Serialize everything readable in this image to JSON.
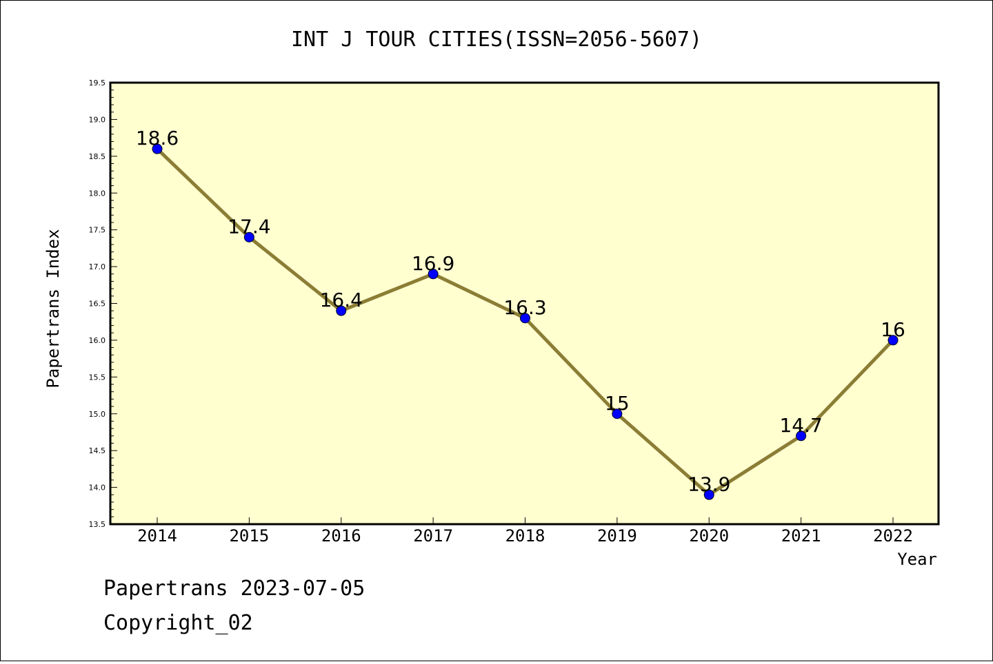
{
  "chart_data": {
    "type": "line",
    "title": "INT J TOUR CITIES(ISSN=2056-5607)",
    "xlabel": "Year",
    "ylabel": "Papertrans Index",
    "x": [
      "2014",
      "2015",
      "2016",
      "2017",
      "2018",
      "2019",
      "2020",
      "2021",
      "2022"
    ],
    "values": [
      18.6,
      17.4,
      16.4,
      16.9,
      16.3,
      15.0,
      13.9,
      14.7,
      16.0
    ],
    "data_labels": [
      "18.6",
      "17.4",
      "16.4",
      "16.9",
      "16.3",
      "15",
      "13.9",
      "14.7",
      "16"
    ],
    "ylim": [
      13.5,
      19.5
    ],
    "yticks": [
      "13.5",
      "14.0",
      "14.5",
      "15.0",
      "15.5",
      "16.0",
      "16.5",
      "17.0",
      "17.5",
      "18.0",
      "18.5",
      "19.0",
      "19.5"
    ],
    "grid": false,
    "colors": {
      "plot_background": "#ffffd0",
      "line": "#8b7d35",
      "marker": "#0000ff"
    }
  },
  "footer": {
    "line1": "Papertrans 2023-07-05",
    "line2": "Copyright_02"
  }
}
